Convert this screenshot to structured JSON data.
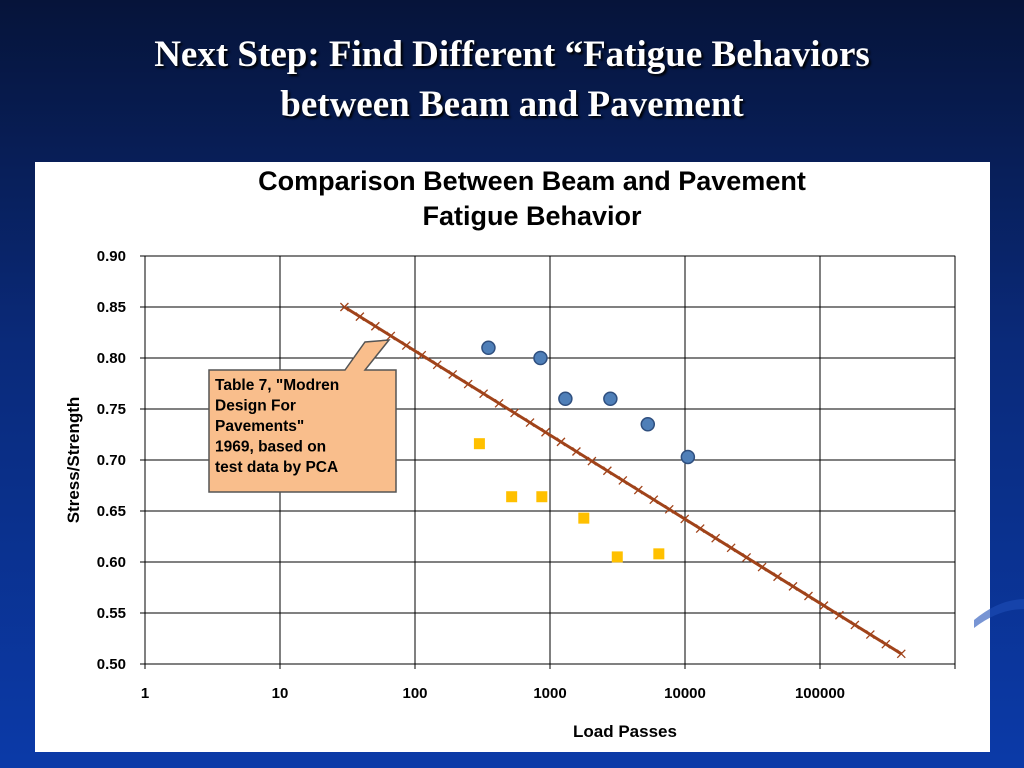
{
  "slide": {
    "title_lines": [
      "Next Step: Find Different “Fatigue Behaviors",
      "between Beam and Pavement"
    ]
  },
  "colors": {
    "background": "#0a2a7a",
    "trend_line": "#a0431a",
    "beam_points": "#4f7fb8",
    "pavement_points": "#ffc000",
    "callout_fill": "#f9be8c",
    "callout_stroke": "#555555"
  },
  "chart_data": {
    "type": "scatter",
    "title": [
      "Comparison Between Beam and Pavement",
      "Fatigue Behavior"
    ],
    "xlabel": "Load Passes",
    "ylabel": "Stress/Strength",
    "xscale": "log",
    "xlim": [
      1,
      1000000
    ],
    "ylim": [
      0.5,
      0.9
    ],
    "xticks": [
      {
        "value": 1,
        "label": "1"
      },
      {
        "value": 10,
        "label": "10"
      },
      {
        "value": 100,
        "label": "100"
      },
      {
        "value": 1000,
        "label": "1000"
      },
      {
        "value": 10000,
        "label": "10000"
      },
      {
        "value": 100000,
        "label": "100000"
      }
    ],
    "yticks": [
      {
        "value": 0.9,
        "label": "0.90"
      },
      {
        "value": 0.85,
        "label": "0.85"
      },
      {
        "value": 0.8,
        "label": "0.80"
      },
      {
        "value": 0.75,
        "label": "0.75"
      },
      {
        "value": 0.7,
        "label": "0.70"
      },
      {
        "value": 0.65,
        "label": "0.65"
      },
      {
        "value": 0.6,
        "label": "0.60"
      },
      {
        "value": 0.55,
        "label": "0.55"
      },
      {
        "value": 0.5,
        "label": "0.50"
      }
    ],
    "grid": true,
    "series": [
      {
        "marker": "circle",
        "points": [
          {
            "x": 350,
            "y": 0.81
          },
          {
            "x": 850,
            "y": 0.8
          },
          {
            "x": 1300,
            "y": 0.76
          },
          {
            "x": 2800,
            "y": 0.76
          },
          {
            "x": 5300,
            "y": 0.735
          },
          {
            "x": 10500,
            "y": 0.703
          }
        ]
      },
      {
        "marker": "square",
        "points": [
          {
            "x": 300,
            "y": 0.716
          },
          {
            "x": 520,
            "y": 0.664
          },
          {
            "x": 870,
            "y": 0.664
          },
          {
            "x": 1780,
            "y": 0.643
          },
          {
            "x": 3150,
            "y": 0.605
          },
          {
            "x": 6400,
            "y": 0.608
          }
        ]
      },
      {
        "marker": "x-line",
        "points": [
          {
            "x": 30,
            "y": 0.85
          },
          {
            "x": 400000,
            "y": 0.51
          }
        ]
      }
    ],
    "annotation": {
      "lines": [
        "Table 7, \"Modren",
        "Design For",
        "Pavements\"",
        "1969, based on",
        "test data by PCA"
      ]
    }
  }
}
